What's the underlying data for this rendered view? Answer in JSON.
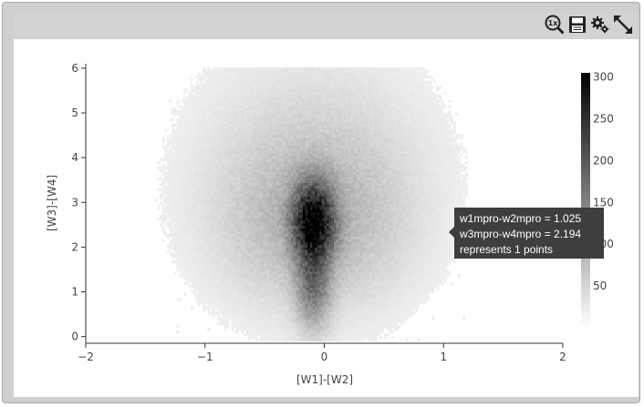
{
  "toolbar": {
    "icons": [
      "zoom-1x-icon",
      "save-icon",
      "gear-icon",
      "expand-icon"
    ],
    "zoom_label": "1x"
  },
  "chart_data": {
    "type": "heatmap",
    "xlabel": "[W1]-[W2]",
    "ylabel": "[W3]-[W4]",
    "xlim": [
      -2,
      2
    ],
    "ylim": [
      -0.15,
      6.1
    ],
    "x_ticks": [
      "−2",
      "−1",
      "0",
      "1",
      "2"
    ],
    "x_tick_values": [
      -2,
      -1,
      0,
      1,
      2
    ],
    "y_ticks": [
      "0",
      "1",
      "2",
      "3",
      "4",
      "5",
      "6"
    ],
    "y_tick_values": [
      0,
      1,
      2,
      3,
      4,
      5,
      6
    ],
    "colorscale": {
      "min": 0,
      "max": 305,
      "from": "#ffffff",
      "to": "#000000"
    },
    "colorbar_ticks": [
      "50",
      "100",
      "150",
      "200",
      "250",
      "300"
    ],
    "colorbar_tick_values": [
      50,
      100,
      150,
      200,
      250,
      300
    ],
    "density_model": {
      "peak_x": -0.1,
      "peak_y": 2.55,
      "peak_count": 305,
      "core_sigma_x": 0.11,
      "core_sigma_y": 0.55,
      "halo_sigma_x": 0.45,
      "halo_sigma_y": 1.1,
      "halo_weight": 0.12,
      "upper_tail_sigma_x": 0.55,
      "upper_tail_sigma_y": 1.4,
      "upper_tail_center_y": 4.0,
      "upper_tail_weight": 0.04
    },
    "bin_size": {
      "x": 0.02,
      "y": 0.06
    },
    "grid": false
  },
  "tooltip": {
    "line1": "w1mpro-w2mpro = 1.025",
    "line2": "w3mpro-w4mpro = 2.194",
    "line3": "represents 1 points"
  }
}
